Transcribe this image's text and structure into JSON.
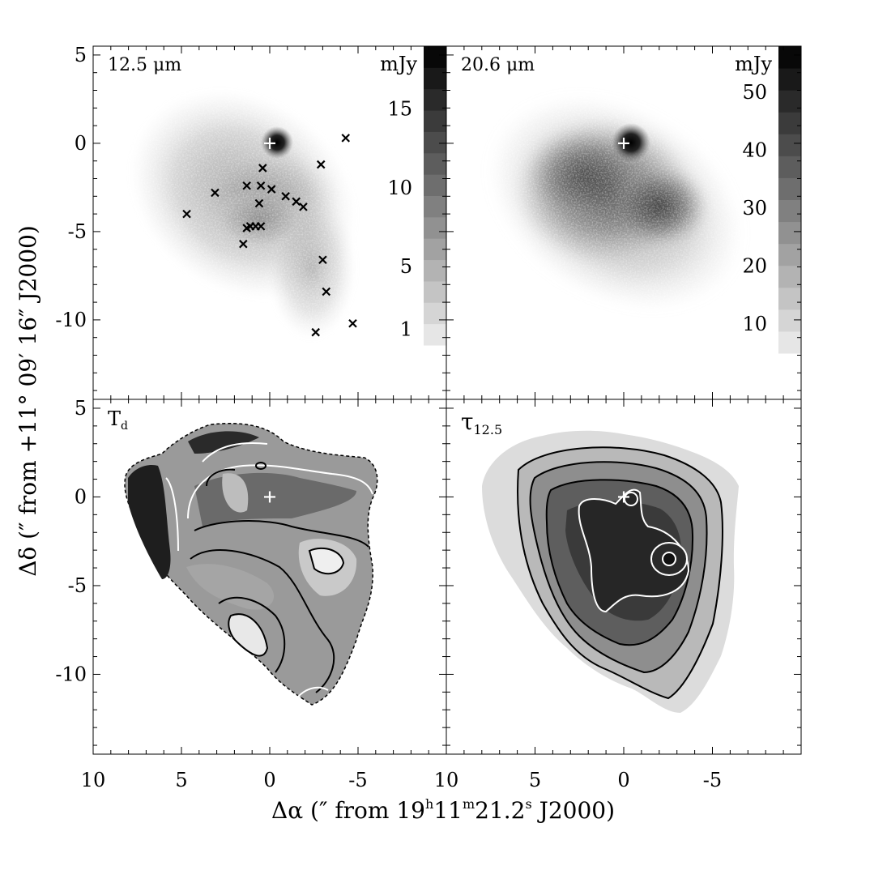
{
  "figure": {
    "xlabel_parts": [
      "Δα (″  from  19",
      "h",
      "11",
      "m",
      "21.2",
      "s",
      " J2000)"
    ],
    "ylabel": "Δδ (″ from +11° 09′ 16″ J2000)"
  },
  "chart_data": [
    {
      "type": "heatmap",
      "panel": "top-left",
      "label": "12.5 μm",
      "colorbar": {
        "unit": "mJy",
        "ticks": [
          1,
          5,
          10,
          15
        ],
        "range": [
          0,
          19
        ]
      },
      "xlim": [
        10,
        -10
      ],
      "ylim": [
        -14.5,
        5.5
      ],
      "xticks": [
        10,
        5,
        0,
        -5
      ],
      "yticks": [
        5,
        0,
        -5,
        -10
      ],
      "peak_marker": [
        0,
        0
      ],
      "sources": [
        [
          4.7,
          -4.0
        ],
        [
          3.1,
          -2.8
        ],
        [
          1.3,
          -2.4
        ],
        [
          0.5,
          -2.4
        ],
        [
          0.4,
          -1.4
        ],
        [
          -0.1,
          -2.6
        ],
        [
          0.6,
          -3.4
        ],
        [
          -0.9,
          -3.0
        ],
        [
          -1.5,
          -3.3
        ],
        [
          -1.9,
          -3.6
        ],
        [
          -2.9,
          -1.2
        ],
        [
          -4.3,
          0.3
        ],
        [
          1.1,
          -4.7
        ],
        [
          0.8,
          -4.7
        ],
        [
          0.5,
          -4.7
        ],
        [
          1.3,
          -4.8
        ],
        [
          1.5,
          -5.7
        ],
        [
          -3.0,
          -6.6
        ],
        [
          -3.2,
          -8.4
        ],
        [
          -2.6,
          -10.7
        ],
        [
          -4.7,
          -10.2
        ]
      ],
      "brightness_peaks": [
        {
          "x": 0,
          "y": 0,
          "value": 18
        },
        {
          "x": 1.0,
          "y": -2.5,
          "value": 4
        },
        {
          "x": 0.5,
          "y": -4.5,
          "value": 4
        }
      ]
    },
    {
      "type": "heatmap",
      "panel": "top-right",
      "label": "20.6 μm",
      "colorbar": {
        "unit": "mJy",
        "ticks": [
          10,
          20,
          30,
          40,
          50
        ],
        "range": [
          5,
          58
        ]
      },
      "xlim": [
        10,
        -10
      ],
      "ylim": [
        -14.5,
        5.5
      ],
      "xticks": [
        10,
        5,
        0,
        -5
      ],
      "yticks": [],
      "peak_marker": [
        0,
        0
      ],
      "brightness_peaks": [
        {
          "x": 0,
          "y": 0,
          "value": 55
        },
        {
          "x": -2.0,
          "y": -3.5,
          "value": 30
        },
        {
          "x": 2.0,
          "y": -2.0,
          "value": 22
        }
      ]
    },
    {
      "type": "heatmap",
      "panel": "bottom-left",
      "label": "T",
      "label_sub": "d",
      "xlim": [
        10,
        -10
      ],
      "ylim": [
        -14.5,
        5.5
      ],
      "xticks": [
        10,
        5,
        0,
        -5
      ],
      "yticks": [
        5,
        0,
        -5,
        -10
      ],
      "peak_marker": [
        0,
        0
      ]
    },
    {
      "type": "heatmap",
      "panel": "bottom-right",
      "label": "τ",
      "label_sub": "12.5",
      "xlim": [
        10,
        -10
      ],
      "ylim": [
        -14.5,
        5.5
      ],
      "xticks": [
        10,
        5,
        0,
        -5
      ],
      "yticks": [],
      "peak_marker": [
        0,
        0
      ]
    }
  ],
  "colors": {
    "ink": "#000000",
    "marker_light": "#ffffff"
  }
}
